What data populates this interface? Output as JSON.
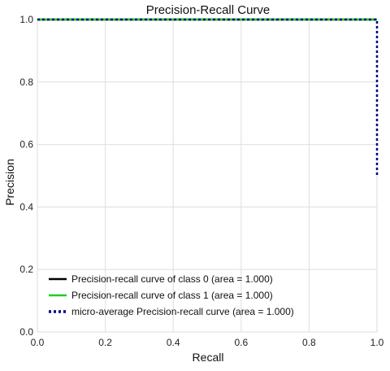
{
  "chart_data": {
    "type": "line",
    "title": "Precision-Recall Curve",
    "xlabel": "Recall",
    "ylabel": "Precision",
    "xlim": [
      0.0,
      1.0
    ],
    "ylim": [
      0.0,
      1.0
    ],
    "x_ticks": [
      "0.0",
      "0.2",
      "0.4",
      "0.6",
      "0.8",
      "1.0"
    ],
    "y_ticks": [
      "0.0",
      "0.2",
      "0.4",
      "0.6",
      "0.8",
      "1.0"
    ],
    "grid": true,
    "legend_position": "lower-left",
    "series": [
      {
        "name": "Precision-recall curve of class 0 (area = 1.000)",
        "color": "#000000",
        "style": "solid",
        "points": [
          [
            0.0,
            1.0
          ],
          [
            1.0,
            1.0
          ]
        ]
      },
      {
        "name": "Precision-recall curve of class 1 (area = 1.000)",
        "color": "#22cc22",
        "style": "solid",
        "points": [
          [
            0.0,
            1.0
          ],
          [
            1.0,
            1.0
          ]
        ]
      },
      {
        "name": "micro-average Precision-recall curve (area = 1.000)",
        "color": "#000080",
        "style": "dotted",
        "points": [
          [
            0.0,
            1.0
          ],
          [
            1.0,
            1.0
          ],
          [
            1.0,
            0.5
          ]
        ]
      }
    ]
  }
}
